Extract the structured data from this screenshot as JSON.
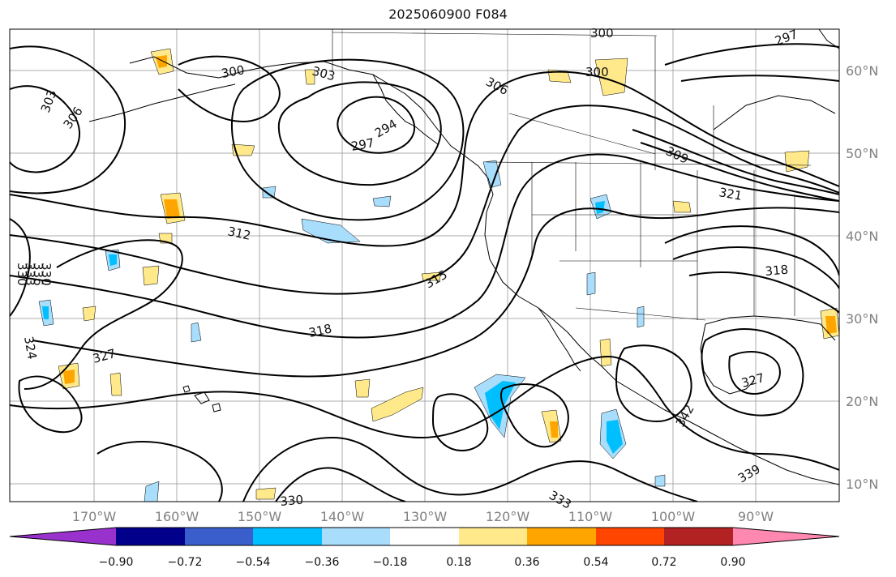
{
  "title": "2025060900 F084",
  "x_ticks": [
    "170°W",
    "160°W",
    "150°W",
    "140°W",
    "130°W",
    "120°W",
    "110°W",
    "100°W",
    "90°W"
  ],
  "y_ticks": [
    "60°N",
    "50°N",
    "40°N",
    "30°N",
    "20°N",
    "10°N"
  ],
  "colorbar": {
    "colors": [
      "#9932cc",
      "#00008b",
      "#3a5fcd",
      "#00bfff",
      "#a8ddfc",
      "#ffffff",
      "#ffe98a",
      "#ffa500",
      "#ff4500",
      "#b22222",
      "#ff88b0"
    ],
    "labels": [
      "−0.90",
      "−0.72",
      "−0.54",
      "−0.36",
      "−0.18",
      "0.18",
      "0.36",
      "0.54",
      "0.72",
      "0.90"
    ]
  },
  "contour_labels": [
    "300",
    "303",
    "306",
    "303",
    "300",
    "297",
    "294",
    "306",
    "309",
    "300",
    "297",
    "312",
    "315",
    "318",
    "321",
    "318",
    "324",
    "327",
    "330",
    "333",
    "342",
    "339",
    "327",
    "330",
    "333",
    "336",
    "330"
  ]
}
